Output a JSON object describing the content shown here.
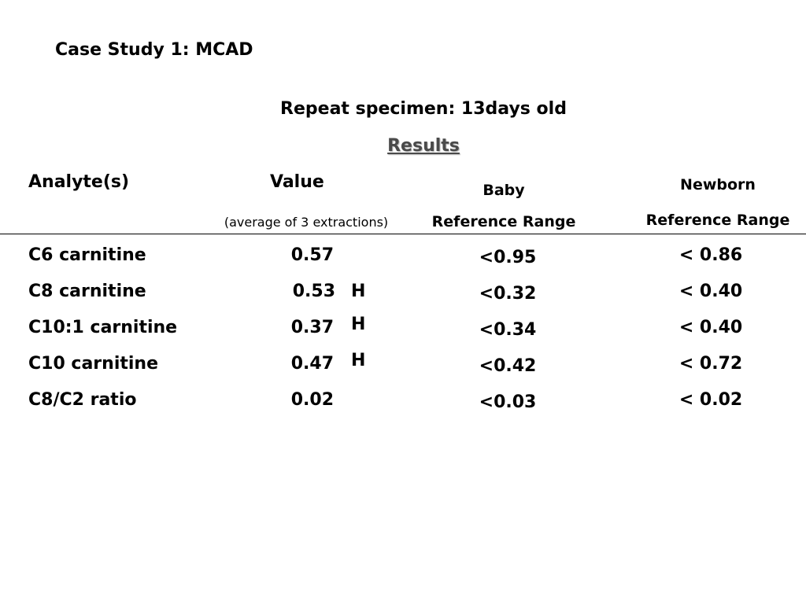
{
  "title": "Case Study 1: MCAD",
  "subtitle": "Repeat specimen: 13days old",
  "results_heading": "Results",
  "headers": {
    "analyte": "Analyte(s)",
    "value": "Value",
    "value_note": "(average of 3 extractions)",
    "baby_line1": "Baby",
    "baby_line2": "Reference Range",
    "newborn_line1": "Newborn",
    "newborn_line2": "Reference Range"
  },
  "rows": [
    {
      "analyte": "C6 carnitine",
      "value": "0.57",
      "flag": "",
      "baby": "<0.95",
      "newborn": "< 0.86"
    },
    {
      "analyte": "C8 carnitine",
      "value": "0.53",
      "flag": "H",
      "baby": "<0.32",
      "newborn": "< 0.40"
    },
    {
      "analyte": "C10:1 carnitine",
      "value": "0.37",
      "flag": "H",
      "baby": "<0.34",
      "newborn": "< 0.40"
    },
    {
      "analyte": "C10 carnitine",
      "value": "0.47",
      "flag": "H",
      "baby": "<0.42",
      "newborn": "< 0.72"
    },
    {
      "analyte": "C8/C2 ratio",
      "value": "0.02",
      "flag": "",
      "baby": "<0.03",
      "newborn": "< 0.02"
    }
  ]
}
